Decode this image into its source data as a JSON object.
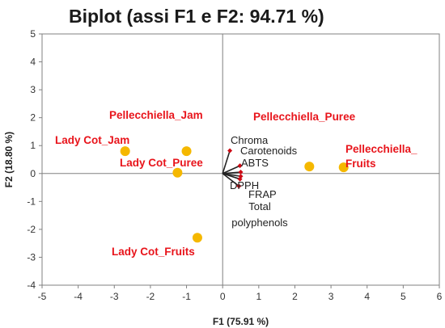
{
  "chart_data": {
    "type": "scatter",
    "title": "Biplot (assi F1 e F2: 94.71 %)",
    "xlabel": "F1 (75.91 %)",
    "ylabel": "F2 (18.80 %)",
    "xlim": [
      -5,
      6
    ],
    "ylim": [
      -4,
      5
    ],
    "x_ticks": [
      "-5",
      "-4",
      "-3",
      "-2",
      "-1",
      "0",
      "1",
      "2",
      "3",
      "4",
      "5",
      "6"
    ],
    "y_ticks": [
      "5",
      "4",
      "3",
      "2",
      "1",
      "0",
      "-1",
      "-2",
      "-3",
      "-4"
    ],
    "grid": false,
    "colors": {
      "observation_point": "#f5b800",
      "observation_label": "#e8141b",
      "variable_vector": "#222222",
      "variable_tip": "#cc0a14",
      "zero_line": "#808080",
      "frame": "#808080"
    },
    "observations": [
      {
        "x": -2.7,
        "y": 0.8,
        "lines": [
          "Lady Cot_Jam"
        ]
      },
      {
        "x": -1.0,
        "y": 0.8,
        "lines": [
          "Pellecchiella_Jam"
        ]
      },
      {
        "x": -1.25,
        "y": 0.03,
        "lines": [
          "Lady Cot_Puree"
        ]
      },
      {
        "x": -0.7,
        "y": -2.3,
        "lines": [
          "Lady Cot_Fruits"
        ]
      },
      {
        "x": 2.4,
        "y": 0.25,
        "lines": [
          "Pellecchiella_Puree"
        ]
      },
      {
        "x": 3.35,
        "y": 0.22,
        "lines": [
          "Pellecchiella_",
          "Fruits"
        ]
      }
    ],
    "variables": [
      {
        "x": 0.2,
        "y": 0.82,
        "lines": [
          "Chroma"
        ]
      },
      {
        "x": 0.48,
        "y": 0.28,
        "lines": [
          "Carotenoids"
        ]
      },
      {
        "x": 0.5,
        "y": 0.05,
        "lines": [
          "ABTS"
        ]
      },
      {
        "x": 0.5,
        "y": -0.1,
        "lines": [
          "DPPH"
        ]
      },
      {
        "x": 0.45,
        "y": -0.45,
        "lines": [
          "FRAP"
        ]
      },
      {
        "x": 0.48,
        "y": -0.2,
        "lines": [
          "Total",
          "polyphenols"
        ]
      }
    ]
  }
}
